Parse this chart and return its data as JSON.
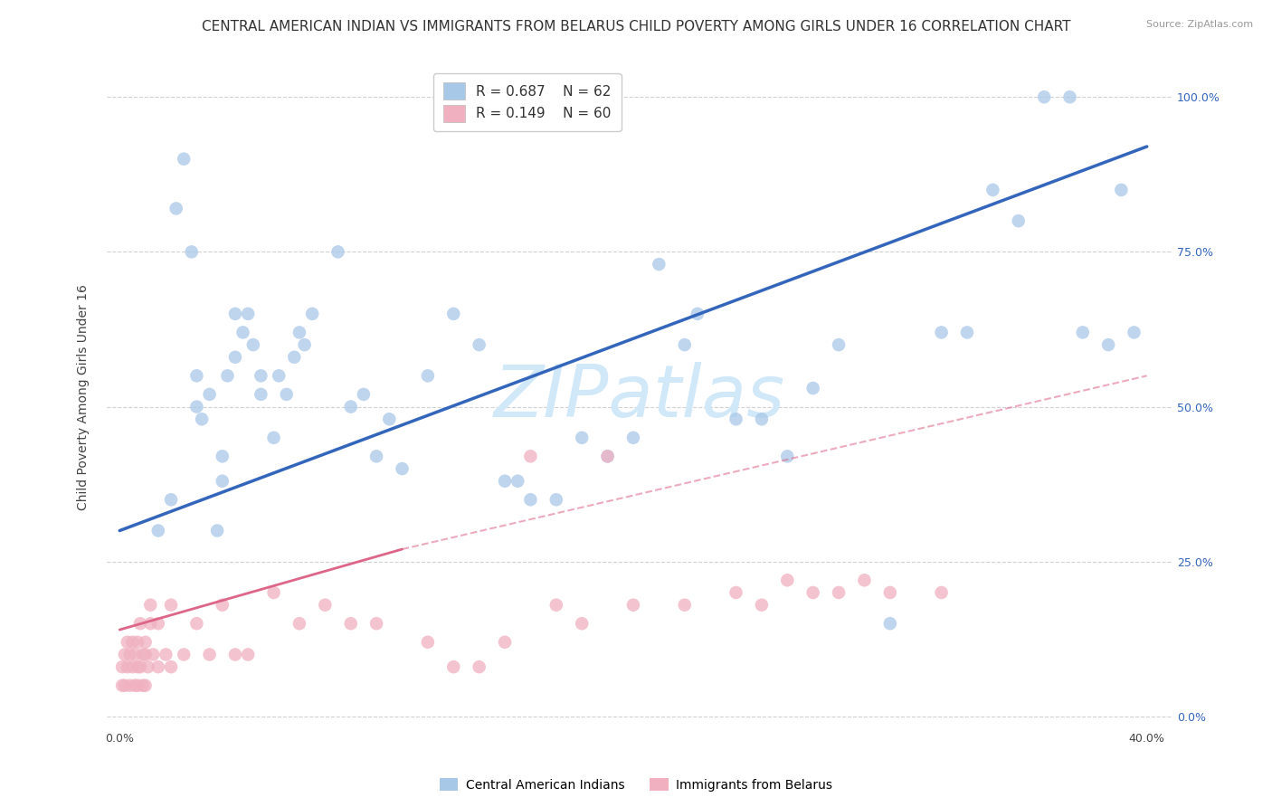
{
  "title": "CENTRAL AMERICAN INDIAN VS IMMIGRANTS FROM BELARUS CHILD POVERTY AMONG GIRLS UNDER 16 CORRELATION CHART",
  "source": "Source: ZipAtlas.com",
  "xlabel_ticks": [
    "0.0%",
    "",
    "",
    "",
    "40.0%"
  ],
  "xlabel_tick_vals": [
    0,
    10,
    20,
    30,
    40
  ],
  "ylabel": "Child Poverty Among Girls Under 16",
  "ylabel_ticks_right": [
    "0.0%",
    "25.0%",
    "50.0%",
    "75.0%",
    "100.0%"
  ],
  "ylabel_tick_vals": [
    0,
    25,
    50,
    75,
    100
  ],
  "xlim": [
    -0.5,
    41
  ],
  "ylim": [
    -2,
    105
  ],
  "legend_r1": "R = 0.687",
  "legend_n1": "N = 62",
  "legend_r2": "R = 0.149",
  "legend_n2": "N = 60",
  "color_blue": "#a8c8e8",
  "color_blue_line": "#3366bb",
  "color_pink": "#f0b0c0",
  "color_pink_line": "#dd6688",
  "watermark": "ZIPatlas",
  "watermark_color": "#d0e8f8",
  "blue_scatter_x": [
    1.5,
    2.0,
    2.2,
    2.5,
    2.8,
    3.0,
    3.0,
    3.2,
    3.5,
    3.8,
    4.0,
    4.0,
    4.2,
    4.5,
    4.5,
    4.8,
    5.0,
    5.2,
    5.5,
    5.5,
    6.0,
    6.2,
    6.5,
    6.8,
    7.0,
    7.2,
    7.5,
    8.5,
    9.0,
    9.5,
    10.0,
    10.5,
    11.0,
    12.0,
    13.0,
    14.0,
    15.0,
    15.5,
    16.0,
    17.0,
    18.0,
    19.0,
    20.0,
    21.0,
    22.0,
    22.5,
    24.0,
    25.0,
    26.0,
    27.0,
    28.0,
    30.0,
    32.0,
    33.0,
    34.0,
    35.0,
    36.0,
    37.0,
    37.5,
    38.5,
    39.0,
    39.5
  ],
  "blue_scatter_y": [
    30,
    35,
    82,
    90,
    75,
    50,
    55,
    48,
    52,
    30,
    42,
    38,
    55,
    58,
    65,
    62,
    65,
    60,
    55,
    52,
    45,
    55,
    52,
    58,
    62,
    60,
    65,
    75,
    50,
    52,
    42,
    48,
    40,
    55,
    65,
    60,
    38,
    38,
    35,
    35,
    45,
    42,
    45,
    73,
    60,
    65,
    48,
    48,
    42,
    53,
    60,
    15,
    62,
    62,
    85,
    80,
    100,
    100,
    62,
    60,
    85,
    62
  ],
  "pink_scatter_x": [
    0.1,
    0.1,
    0.2,
    0.2,
    0.3,
    0.3,
    0.4,
    0.4,
    0.5,
    0.5,
    0.6,
    0.6,
    0.7,
    0.7,
    0.7,
    0.8,
    0.8,
    0.9,
    0.9,
    1.0,
    1.0,
    1.0,
    1.1,
    1.2,
    1.2,
    1.3,
    1.5,
    1.5,
    1.8,
    2.0,
    2.0,
    2.5,
    3.0,
    3.5,
    4.0,
    4.5,
    5.0,
    6.0,
    7.0,
    8.0,
    9.0,
    10.0,
    12.0,
    13.0,
    14.0,
    15.0,
    16.0,
    17.0,
    18.0,
    19.0,
    20.0,
    22.0,
    24.0,
    25.0,
    26.0,
    27.0,
    28.0,
    29.0,
    30.0,
    32.0
  ],
  "pink_scatter_y": [
    5,
    8,
    5,
    10,
    8,
    12,
    5,
    10,
    8,
    12,
    5,
    10,
    5,
    8,
    12,
    8,
    15,
    5,
    10,
    10,
    12,
    5,
    8,
    15,
    18,
    10,
    8,
    15,
    10,
    18,
    8,
    10,
    15,
    10,
    18,
    10,
    10,
    20,
    15,
    18,
    15,
    15,
    12,
    8,
    8,
    12,
    42,
    18,
    15,
    42,
    18,
    18,
    20,
    18,
    22,
    20,
    20,
    22,
    20,
    20
  ],
  "blue_line_x0": 0,
  "blue_line_x1": 40,
  "blue_line_y0": 30,
  "blue_line_y1": 92,
  "pink_solid_x0": 0,
  "pink_solid_x1": 11,
  "pink_solid_y0": 14,
  "pink_solid_y1": 27,
  "pink_dashed_x0": 11,
  "pink_dashed_x1": 40,
  "pink_dashed_y0": 27,
  "pink_dashed_y1": 55,
  "grid_color": "#cccccc",
  "bg_color": "#ffffff",
  "title_fontsize": 11,
  "axis_tick_fontsize": 9,
  "legend_fontsize": 11
}
